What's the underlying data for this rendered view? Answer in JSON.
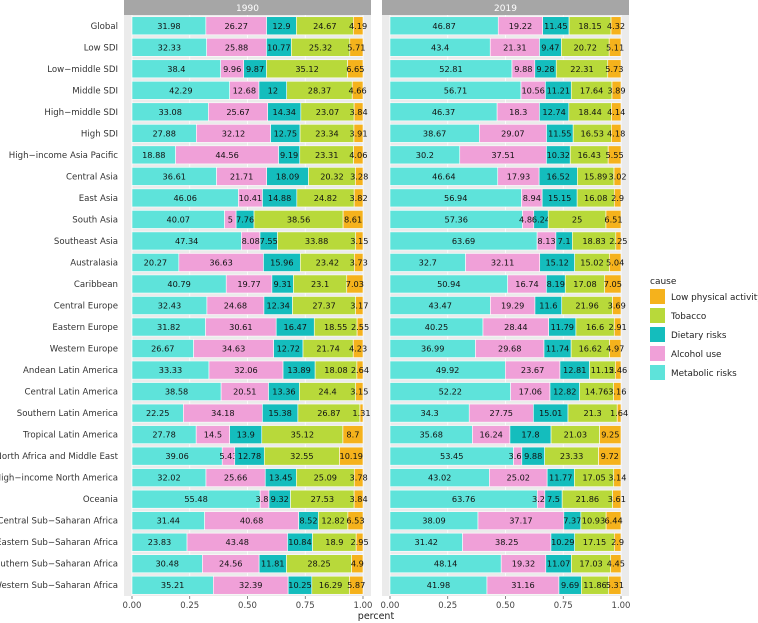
{
  "chart_data": {
    "type": "bar",
    "orientation": "horizontal",
    "stacked": true,
    "xlabel": "percent",
    "xlim": [
      0,
      1
    ],
    "xticks": [
      "0.00",
      "0.25",
      "0.50",
      "0.75",
      "1.00"
    ],
    "legend": {
      "title": "cause",
      "placement": "right",
      "entries": [
        {
          "label": "Low physical activity",
          "color": "#F5B21C"
        },
        {
          "label": "Tobacco",
          "color": "#B8D93A"
        },
        {
          "label": "Dietary risks",
          "color": "#14BDBD"
        },
        {
          "label": "Alcohol use",
          "color": "#F0A0D8"
        },
        {
          "label": "Metabolic risks",
          "color": "#5EE3DA"
        }
      ]
    },
    "stack_order": [
      "Metabolic risks",
      "Alcohol use",
      "Dietary risks",
      "Tobacco",
      "Low physical activity"
    ],
    "categories": [
      "Global",
      "Low SDI",
      "Low−middle SDI",
      "Middle SDI",
      "High−middle SDI",
      "High SDI",
      "High−income Asia Pacific",
      "Central Asia",
      "East Asia",
      "South Asia",
      "Southeast Asia",
      "Australasia",
      "Caribbean",
      "Central Europe",
      "Eastern Europe",
      "Western Europe",
      "Andean Latin America",
      "Central Latin America",
      "Southern Latin America",
      "Tropical Latin America",
      "North Africa and Middle East",
      "High−income North America",
      "Oceania",
      "Central Sub−Saharan Africa",
      "Eastern Sub−Saharan Africa",
      "Southern Sub−Saharan Africa",
      "Western Sub−Saharan Africa"
    ],
    "panels": [
      {
        "title": "1990",
        "rows": [
          [
            "31.98",
            "26.27",
            "12.9",
            "24.67",
            "4.19"
          ],
          [
            "32.33",
            "25.88",
            "10.77",
            "25.32",
            "5.71"
          ],
          [
            "38.4",
            "9.96",
            "9.87",
            "35.12",
            "6.65"
          ],
          [
            "42.29",
            "12.68",
            "12",
            "28.37",
            "4.66"
          ],
          [
            "33.08",
            "25.67",
            "14.34",
            "23.07",
            "3.84"
          ],
          [
            "27.88",
            "32.12",
            "12.75",
            "23.34",
            "3.91"
          ],
          [
            "18.88",
            "44.56",
            "9.19",
            "23.31",
            "4.06"
          ],
          [
            "36.61",
            "21.71",
            "18.09",
            "20.32",
            "3.28"
          ],
          [
            "46.06",
            "10.41",
            "14.88",
            "24.82",
            "3.82"
          ],
          [
            "40.07",
            "5",
            "7.76",
            "38.56",
            "8.61"
          ],
          [
            "47.34",
            "8.08",
            "7.55",
            "33.88",
            "3.15"
          ],
          [
            "20.27",
            "36.63",
            "15.96",
            "23.42",
            "3.73"
          ],
          [
            "40.79",
            "19.77",
            "9.31",
            "23.1",
            "7.03"
          ],
          [
            "32.43",
            "24.68",
            "12.34",
            "27.37",
            "3.17"
          ],
          [
            "31.82",
            "30.61",
            "16.47",
            "18.55",
            "2.55"
          ],
          [
            "26.67",
            "34.63",
            "12.72",
            "21.74",
            "4.23"
          ],
          [
            "33.33",
            "32.06",
            "13.89",
            "18.08",
            "2.64"
          ],
          [
            "38.58",
            "20.51",
            "13.36",
            "24.4",
            "3.15"
          ],
          [
            "22.25",
            "34.18",
            "15.38",
            "26.87",
            "1.31"
          ],
          [
            "27.78",
            "14.5",
            "13.9",
            "35.12",
            "8.7"
          ],
          [
            "39.06",
            "5.43",
            "12.78",
            "32.55",
            "10.19"
          ],
          [
            "32.02",
            "25.66",
            "13.45",
            "25.09",
            "3.78"
          ],
          [
            "55.48",
            "3.83",
            "9.32",
            "27.53",
            "3.84"
          ],
          [
            "31.44",
            "40.68",
            "8.52",
            "12.82",
            "6.53"
          ],
          [
            "23.83",
            "43.48",
            "10.84",
            "18.9",
            "2.95"
          ],
          [
            "30.48",
            "24.56",
            "11.81",
            "28.25",
            "4.9"
          ],
          [
            "35.21",
            "32.39",
            "10.25",
            "16.29",
            "5.87"
          ]
        ]
      },
      {
        "title": "2019",
        "rows": [
          [
            "46.87",
            "19.22",
            "11.45",
            "18.15",
            "4.32"
          ],
          [
            "43.4",
            "21.31",
            "9.47",
            "20.72",
            "5.11"
          ],
          [
            "52.81",
            "9.88",
            "9.28",
            "22.31",
            "5.73"
          ],
          [
            "56.71",
            "10.56",
            "11.21",
            "17.64",
            "3.89"
          ],
          [
            "46.37",
            "18.3",
            "12.74",
            "18.44",
            "4.14"
          ],
          [
            "38.67",
            "29.07",
            "11.55",
            "16.53",
            "4.18"
          ],
          [
            "30.2",
            "37.51",
            "10.32",
            "16.43",
            "5.55"
          ],
          [
            "46.64",
            "17.93",
            "16.52",
            "15.89",
            "3.02"
          ],
          [
            "56.94",
            "8.94",
            "15.15",
            "16.08",
            "2.9"
          ],
          [
            "57.36",
            "4.88",
            "6.24",
            "25",
            "6.51"
          ],
          [
            "63.69",
            "8.13",
            "7.1",
            "18.83",
            "2.25"
          ],
          [
            "32.7",
            "32.11",
            "15.12",
            "15.02",
            "5.04"
          ],
          [
            "50.94",
            "16.74",
            "8.19",
            "17.08",
            "7.05"
          ],
          [
            "43.47",
            "19.29",
            "11.6",
            "21.96",
            "3.69"
          ],
          [
            "40.25",
            "28.44",
            "11.79",
            "16.6",
            "2.91"
          ],
          [
            "36.99",
            "29.68",
            "11.74",
            "16.62",
            "4.97"
          ],
          [
            "49.92",
            "23.67",
            "12.81",
            "11.15",
            "2.46"
          ],
          [
            "52.22",
            "17.06",
            "12.82",
            "14.76",
            "3.16"
          ],
          [
            "34.3",
            "27.75",
            "15.01",
            "21.3",
            "1.64"
          ],
          [
            "35.68",
            "16.24",
            "17.8",
            "21.03",
            "9.25"
          ],
          [
            "53.45",
            "3.62",
            "9.88",
            "23.33",
            "9.72"
          ],
          [
            "43.02",
            "25.02",
            "11.77",
            "17.05",
            "3.14"
          ],
          [
            "63.76",
            "3.27",
            "7.5",
            "21.86",
            "3.61"
          ],
          [
            "38.09",
            "37.17",
            "7.37",
            "10.93",
            "6.44"
          ],
          [
            "31.42",
            "38.25",
            "10.29",
            "17.15",
            "2.9"
          ],
          [
            "48.14",
            "19.32",
            "11.07",
            "17.03",
            "4.45"
          ],
          [
            "41.98",
            "31.16",
            "9.69",
            "11.86",
            "5.31"
          ]
        ]
      }
    ]
  }
}
